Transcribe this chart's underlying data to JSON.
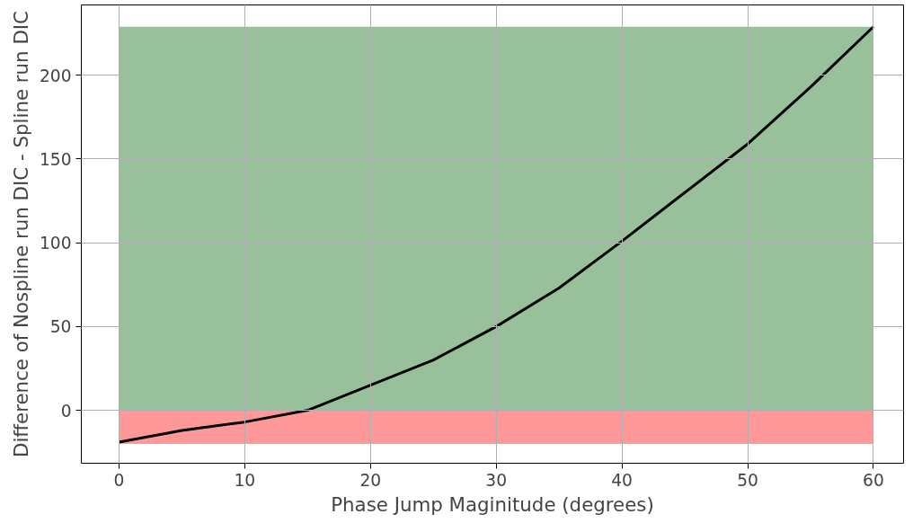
{
  "chart_data": {
    "type": "line",
    "xlabel": "Phase Jump Maginitude (degrees)",
    "ylabel": "Difference of Nospline run DIC - Spline run DIC",
    "x": [
      0,
      5,
      10,
      15,
      20,
      25,
      30,
      35,
      40,
      45,
      50,
      55,
      60
    ],
    "series": [
      {
        "color": "#000000",
        "values": [
          -19,
          -12,
          -7,
          0,
          15,
          30,
          50,
          73,
          101,
          130,
          159,
          193,
          229
        ]
      }
    ],
    "xlim": [
      -3,
      62.4
    ],
    "ylim": [
      -31.6,
      242
    ],
    "xticks": [
      0,
      10,
      20,
      30,
      40,
      50,
      60
    ],
    "yticks": [
      0,
      50,
      100,
      150,
      200
    ],
    "bands": [
      {
        "axis": "y",
        "from": 0,
        "to": 229,
        "color": "#98c09a"
      },
      {
        "axis": "y",
        "from": -20,
        "to": 0,
        "color": "#ff9999"
      }
    ],
    "grid": true,
    "marker": "none",
    "line_style": "solid"
  }
}
